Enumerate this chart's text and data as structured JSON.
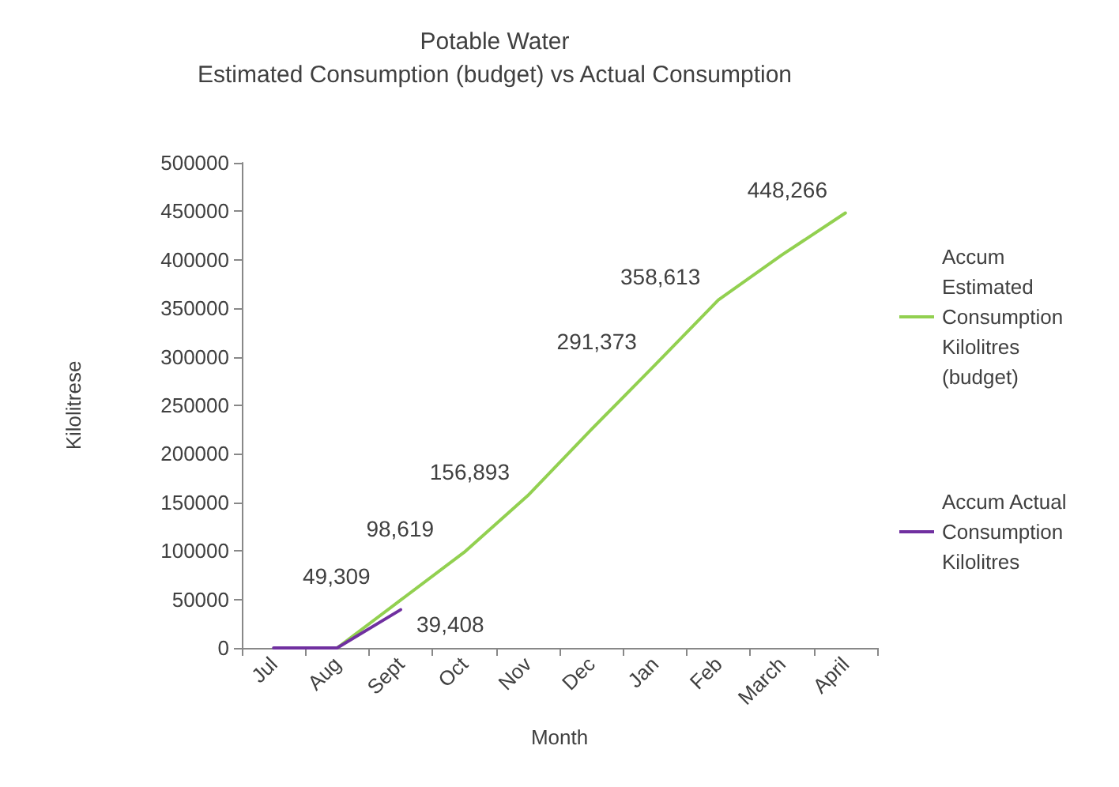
{
  "chart_data": {
    "type": "line",
    "title": "Potable Water",
    "subtitle": "Estimated Consumption (budget) vs Actual Consumption",
    "xlabel": "Month",
    "ylabel": "Kilolitrese",
    "categories": [
      "Jul",
      "Aug",
      "Sept",
      "Oct",
      "Nov",
      "Dec",
      "Jan",
      "Feb",
      "March",
      "April"
    ],
    "ylim": [
      0,
      500000
    ],
    "yticks": [
      0,
      50000,
      100000,
      150000,
      200000,
      250000,
      300000,
      350000,
      400000,
      450000,
      500000
    ],
    "grid": false,
    "legend": "right",
    "marker": "none",
    "series": [
      {
        "name": "Accum Estimated Consumption Kilolitres (budget)",
        "color": "#92d050",
        "values": [
          null,
          0,
          49309,
          98619,
          156893,
          225000,
          291373,
          358613,
          405000,
          448266
        ],
        "value_labels": [
          null,
          null,
          "49,309",
          "98,619",
          "156,893",
          null,
          "291,373",
          "358,613",
          null,
          "448,266"
        ]
      },
      {
        "name": "Accum Actual Consumption Kilolitres",
        "color": "#7030a0",
        "values": [
          0,
          0,
          39408,
          null,
          null,
          null,
          null,
          null,
          null,
          null
        ],
        "value_labels": [
          null,
          null,
          "39,408",
          null,
          null,
          null,
          null,
          null,
          null,
          null
        ]
      }
    ]
  }
}
